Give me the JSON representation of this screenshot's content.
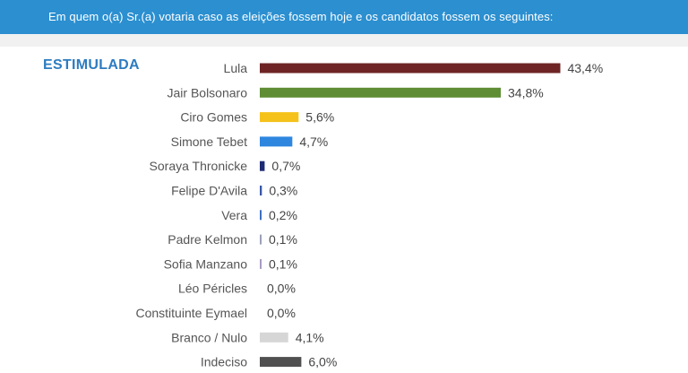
{
  "header": {
    "question": "Em quem o(a) Sr.(a) votaria caso as eleições fossem hoje e os candidatos fossem os seguintes:"
  },
  "badge": "ESTIMULADA",
  "chart_data": {
    "type": "bar",
    "orientation": "horizontal",
    "title": "",
    "xlabel": "",
    "ylabel": "",
    "categories": [
      "Lula",
      "Jair Bolsonaro",
      "Ciro Gomes",
      "Simone Tebet",
      "Soraya Thronicke",
      "Felipe D'Avila",
      "Vera",
      "Padre Kelmon",
      "Sofia Manzano",
      "Léo Péricles",
      "Constituinte Eymael",
      "Branco / Nulo",
      "Indeciso"
    ],
    "values": [
      43.4,
      34.8,
      5.6,
      4.7,
      0.7,
      0.3,
      0.2,
      0.1,
      0.1,
      0.0,
      0.0,
      4.1,
      6.0
    ],
    "value_labels": [
      "43,4%",
      "34,8%",
      "5,6%",
      "4,7%",
      "0,7%",
      "0,3%",
      "0,2%",
      "0,1%",
      "0,1%",
      "0,0%",
      "0,0%",
      "4,1%",
      "6,0%"
    ],
    "colors": [
      "#6e2424",
      "#5f8d35",
      "#f5c21b",
      "#2e86de",
      "#1d2b73",
      "#3758a8",
      "#3f6fc0",
      "#9aa0b8",
      "#a79bc4",
      "#cccccc",
      "#cccccc",
      "#d6d6d6",
      "#505050"
    ],
    "grid": false,
    "legend": "none"
  }
}
